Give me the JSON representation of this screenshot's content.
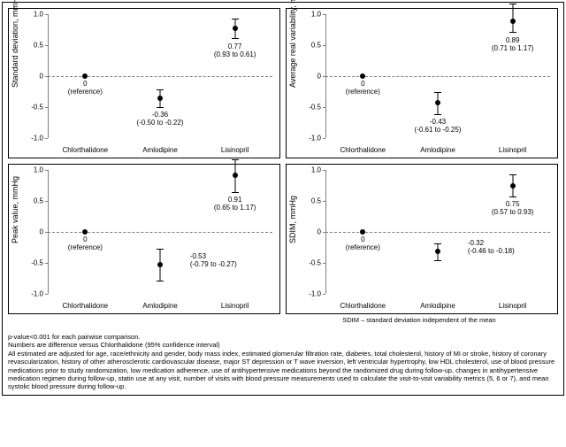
{
  "ylim": [
    -1.0,
    1.0
  ],
  "yticks": [
    -1.0,
    -0.5,
    0,
    0.5,
    1.0
  ],
  "ytick_labels": [
    "-1.0",
    "-0.5",
    "0",
    "0.5",
    "1.0"
  ],
  "categories": [
    "Chlorthalidone",
    "Amlodipine",
    "Lisinopril"
  ],
  "reference_text": "(reference)",
  "panels": [
    {
      "ylabel": "Standard deviation, mmHg",
      "points": [
        {
          "y": 0,
          "lo": null,
          "hi": null,
          "val": "0",
          "ci": null,
          "anchor": "below"
        },
        {
          "y": -0.36,
          "lo": -0.5,
          "hi": -0.22,
          "val": "-0.36",
          "ci": "(-0.50 to -0.22)",
          "anchor": "below"
        },
        {
          "y": 0.77,
          "lo": 0.61,
          "hi": 0.93,
          "val": "0.77",
          "ci": "(0.93 to 0.61)",
          "anchor": "below"
        }
      ]
    },
    {
      "ylabel": "Average real variability, mmHg",
      "points": [
        {
          "y": 0,
          "lo": null,
          "hi": null,
          "val": "0",
          "ci": null,
          "anchor": "below"
        },
        {
          "y": -0.43,
          "lo": -0.61,
          "hi": -0.25,
          "val": "-0.43",
          "ci": "(-0.61 to -0.25)",
          "anchor": "below"
        },
        {
          "y": 0.89,
          "lo": 0.71,
          "hi": 1.17,
          "val": "0.89",
          "ci": "(0.71 to 1.17)",
          "anchor": "below"
        }
      ]
    },
    {
      "ylabel": "Peak value, mmHg",
      "points": [
        {
          "y": 0,
          "lo": null,
          "hi": null,
          "val": "0",
          "ci": null,
          "anchor": "below"
        },
        {
          "y": -0.53,
          "lo": -0.79,
          "hi": -0.27,
          "val": "-0.53",
          "ci": "(-0.79 to -0.27)",
          "anchor": "right"
        },
        {
          "y": 0.91,
          "lo": 0.65,
          "hi": 1.17,
          "val": "0.91",
          "ci": "(0.65 to 1.17)",
          "anchor": "below"
        }
      ]
    },
    {
      "ylabel": "SDIM, mmHg",
      "points": [
        {
          "y": 0,
          "lo": null,
          "hi": null,
          "val": "0",
          "ci": null,
          "anchor": "below"
        },
        {
          "y": -0.32,
          "lo": -0.46,
          "hi": -0.18,
          "val": "-0.32",
          "ci": "(-0.46 to -0.18)",
          "anchor": "right"
        },
        {
          "y": 0.75,
          "lo": 0.57,
          "hi": 0.93,
          "val": "0.75",
          "ci": "(0.57 to 0.93)",
          "anchor": "below"
        }
      ]
    }
  ],
  "sdim_note": "SDIM – standard deviation independent of the mean",
  "caption_lines": [
    "p-value<0.001 for each pairwise comparison.",
    "Numbers are difference versus Chlorthalidone (95% confidence interval)",
    "All estimated are adjusted for age, race/ethnicity and gender, body mass index, estimated glomerular filtration rate, diabetes, total cholesterol, history of MI or stroke, history of coronary revascularization, history of other atherosclerotic cardiovascular disease, major ST depression or T wave inversion, left ventricular hypertrophy, low HDL cholesterol, use of blood pressure medications prior to study randomization, low medication adherence, use of antihypertensive medications beyond the randomized drug during follow-up, changes in antihypertensive medication regimen during follow-up, statin use at any visit, number of visits with blood pressure measurements used to calculate the visit-to-visit variability metrics (5, 6 or 7), and mean systolic blood pressure during follow-up."
  ],
  "colors": {
    "border": "#000000",
    "axis": "#808080",
    "marker": "#000000",
    "background": "#ffffff"
  }
}
